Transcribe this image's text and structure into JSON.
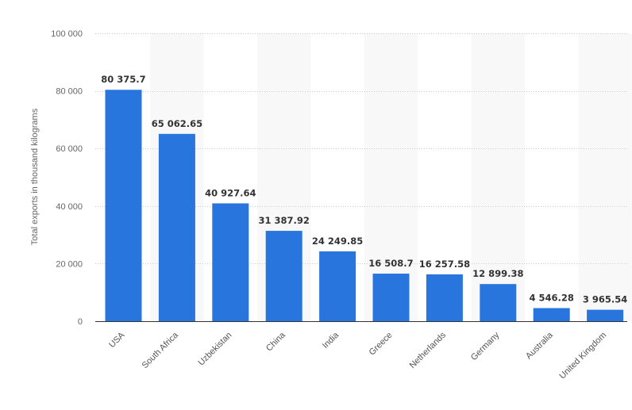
{
  "chart_data": {
    "type": "bar",
    "title": "",
    "xlabel": "",
    "ylabel": "Total exports in thousand kilograms",
    "ylim": [
      0,
      100000
    ],
    "yticks": [
      0,
      20000,
      40000,
      60000,
      80000,
      100000
    ],
    "ytick_labels": [
      "0",
      "20 000",
      "40 000",
      "60 000",
      "80 000",
      "100 000"
    ],
    "categories": [
      "USA",
      "South Africa",
      "Uzbekistan",
      "China",
      "India",
      "Greece",
      "Netherlands",
      "Germany",
      "Australia",
      "United Kingdom"
    ],
    "values": [
      80375.7,
      65062.65,
      40927.64,
      31387.92,
      24249.85,
      16508.7,
      16257.58,
      12899.38,
      4546.28,
      3965.54
    ],
    "value_labels": [
      "80 375.7",
      "65 062.65",
      "40 927.64",
      "31 387.92",
      "24 249.85",
      "16 508.7",
      "16 257.58",
      "12 899.38",
      "4 546.28",
      "3 965.54"
    ],
    "grid": true,
    "colors": {
      "bar": "#2876dd",
      "band": "#f8f8f8",
      "grid": "#cccccc",
      "axis": "#333333"
    }
  }
}
